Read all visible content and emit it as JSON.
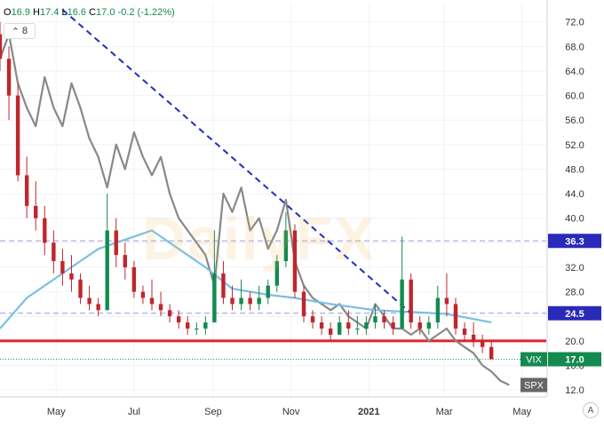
{
  "legend": {
    "open_label": "O",
    "open": "16.9",
    "high_label": "H",
    "high": "17.4",
    "low_label": "L",
    "low": "16.6",
    "close_label": "C",
    "close": "17.0",
    "change": "-0.2 (-1.22%)"
  },
  "collapse_count": "8",
  "watermark": "DailyFX",
  "colors": {
    "up": "#138a4f",
    "down": "#c0262d",
    "spx": "#888888",
    "ma": "#7bbfe3",
    "trendline": "#1f2fb8",
    "support": "#e0232c",
    "ref": "#9a9adf",
    "label_blue": "#2a2ab8"
  },
  "chart_data": {
    "type": "candlestick",
    "y_axis": {
      "ticks": [
        12.0,
        16.0,
        20.0,
        24.0,
        28.0,
        32.0,
        36.0,
        40.0,
        44.0,
        48.0,
        52.0,
        56.0,
        60.0,
        64.0,
        68.0,
        72.0
      ],
      "tick_labels": [
        "12.0",
        "16.0",
        "20.0",
        "24.0",
        "28.0",
        "32.0",
        "36.0",
        "40.0",
        "44.0",
        "48.0",
        "52.0",
        "56.0",
        "60.0",
        "64.0",
        "68.0",
        "72.0"
      ],
      "range": [
        11.0,
        75.0
      ],
      "position": "right"
    },
    "x_axis": {
      "labels": [
        "May",
        "Jul",
        "Sep",
        "Nov",
        "2021",
        "Mar",
        "May"
      ],
      "label_dates": [
        "2020-05-01",
        "2020-07-01",
        "2020-09-01",
        "2020-11-01",
        "2021-01-01",
        "2021-03-01",
        "2021-05-01"
      ],
      "range": [
        "2020-03-18",
        "2021-05-20"
      ]
    },
    "grid": "on",
    "series": [
      {
        "name": "VIX",
        "kind": "candles",
        "values": [
          [
            "2020-03-18",
            70,
            72,
            64,
            66
          ],
          [
            "2020-03-25",
            66,
            68,
            56,
            60
          ],
          [
            "2020-04-01",
            60,
            62,
            46,
            47
          ],
          [
            "2020-04-08",
            47,
            50,
            40,
            42
          ],
          [
            "2020-04-15",
            42,
            46,
            38,
            40
          ],
          [
            "2020-04-22",
            40,
            42,
            34,
            36
          ],
          [
            "2020-04-29",
            36,
            38,
            31,
            33
          ],
          [
            "2020-05-06",
            33,
            35,
            29,
            31
          ],
          [
            "2020-05-13",
            31,
            34,
            28,
            30
          ],
          [
            "2020-05-20",
            30,
            31,
            26,
            27
          ],
          [
            "2020-05-27",
            27,
            29,
            25,
            26
          ],
          [
            "2020-06-03",
            26,
            27,
            24,
            25
          ],
          [
            "2020-06-10",
            25,
            44,
            25,
            38
          ],
          [
            "2020-06-17",
            38,
            40,
            32,
            34
          ],
          [
            "2020-06-24",
            34,
            36,
            30,
            32
          ],
          [
            "2020-07-01",
            32,
            33,
            27,
            28
          ],
          [
            "2020-07-08",
            28,
            29,
            26,
            27
          ],
          [
            "2020-07-15",
            27,
            30,
            25,
            26
          ],
          [
            "2020-07-22",
            26,
            28,
            24,
            25
          ],
          [
            "2020-07-29",
            25,
            26,
            23,
            24
          ],
          [
            "2020-08-05",
            24,
            25,
            22,
            23
          ],
          [
            "2020-08-12",
            23,
            24,
            21,
            22
          ],
          [
            "2020-08-19",
            22,
            23,
            21,
            22
          ],
          [
            "2020-08-26",
            22,
            24,
            21,
            23
          ],
          [
            "2020-09-02",
            23,
            38,
            23,
            31
          ],
          [
            "2020-09-09",
            31,
            33,
            26,
            27
          ],
          [
            "2020-09-16",
            27,
            29,
            25,
            26
          ],
          [
            "2020-09-23",
            26,
            30,
            25,
            27
          ],
          [
            "2020-09-30",
            27,
            28,
            25,
            26
          ],
          [
            "2020-10-07",
            26,
            29,
            25,
            27
          ],
          [
            "2020-10-14",
            27,
            30,
            26,
            29
          ],
          [
            "2020-10-21",
            29,
            34,
            28,
            33
          ],
          [
            "2020-10-28",
            33,
            41,
            32,
            38
          ],
          [
            "2020-11-04",
            38,
            39,
            27,
            28
          ],
          [
            "2020-11-11",
            28,
            29,
            23,
            24
          ],
          [
            "2020-11-18",
            24,
            25,
            22,
            23
          ],
          [
            "2020-11-25",
            23,
            24,
            21,
            22
          ],
          [
            "2020-12-02",
            22,
            23,
            20,
            21
          ],
          [
            "2020-12-09",
            21,
            24,
            21,
            23
          ],
          [
            "2020-12-16",
            23,
            25,
            21,
            22
          ],
          [
            "2020-12-23",
            22,
            24,
            21,
            22
          ],
          [
            "2020-12-30",
            22,
            24,
            21,
            23
          ],
          [
            "2021-01-06",
            23,
            26,
            22,
            24
          ],
          [
            "2021-01-13",
            24,
            25,
            22,
            23
          ],
          [
            "2021-01-20",
            23,
            24,
            21,
            22
          ],
          [
            "2021-01-27",
            22,
            37,
            22,
            30
          ],
          [
            "2021-02-03",
            30,
            31,
            22,
            23
          ],
          [
            "2021-02-10",
            23,
            24,
            21,
            22
          ],
          [
            "2021-02-17",
            22,
            24,
            21,
            23
          ],
          [
            "2021-02-24",
            23,
            29,
            22,
            27
          ],
          [
            "2021-03-03",
            27,
            31,
            24,
            26
          ],
          [
            "2021-03-10",
            26,
            27,
            21,
            22
          ],
          [
            "2021-03-17",
            22,
            23,
            20,
            21
          ],
          [
            "2021-03-24",
            21,
            23,
            19,
            20
          ],
          [
            "2021-03-31",
            20,
            21,
            18,
            19
          ],
          [
            "2021-04-07",
            19,
            20,
            17,
            17
          ]
        ]
      },
      {
        "name": "SPX",
        "kind": "line",
        "label": "SPX",
        "values": [
          [
            "2020-03-18",
            66
          ],
          [
            "2020-03-25",
            70
          ],
          [
            "2020-04-01",
            62
          ],
          [
            "2020-04-08",
            58
          ],
          [
            "2020-04-15",
            55
          ],
          [
            "2020-04-22",
            63
          ],
          [
            "2020-04-29",
            58
          ],
          [
            "2020-05-06",
            55
          ],
          [
            "2020-05-13",
            62
          ],
          [
            "2020-05-20",
            58
          ],
          [
            "2020-05-27",
            53
          ],
          [
            "2020-06-03",
            50
          ],
          [
            "2020-06-10",
            45
          ],
          [
            "2020-06-17",
            52
          ],
          [
            "2020-06-24",
            48
          ],
          [
            "2020-07-01",
            54
          ],
          [
            "2020-07-08",
            50
          ],
          [
            "2020-07-15",
            47
          ],
          [
            "2020-07-22",
            50
          ],
          [
            "2020-07-29",
            44
          ],
          [
            "2020-08-05",
            40
          ],
          [
            "2020-08-12",
            38
          ],
          [
            "2020-08-19",
            36
          ],
          [
            "2020-08-26",
            34
          ],
          [
            "2020-09-02",
            29
          ],
          [
            "2020-09-09",
            44
          ],
          [
            "2020-09-16",
            41
          ],
          [
            "2020-09-23",
            45
          ],
          [
            "2020-09-30",
            38
          ],
          [
            "2020-10-07",
            40
          ],
          [
            "2020-10-14",
            35
          ],
          [
            "2020-10-21",
            38
          ],
          [
            "2020-10-28",
            43
          ],
          [
            "2020-11-04",
            33
          ],
          [
            "2020-11-11",
            29
          ],
          [
            "2020-11-18",
            27
          ],
          [
            "2020-11-25",
            26
          ],
          [
            "2020-12-02",
            25
          ],
          [
            "2020-12-09",
            26
          ],
          [
            "2020-12-16",
            24
          ],
          [
            "2020-12-23",
            23
          ],
          [
            "2020-12-30",
            22
          ],
          [
            "2021-01-06",
            26
          ],
          [
            "2021-01-13",
            24
          ],
          [
            "2021-01-20",
            22
          ],
          [
            "2021-01-27",
            22
          ],
          [
            "2021-02-03",
            21
          ],
          [
            "2021-02-10",
            22
          ],
          [
            "2021-02-17",
            20
          ],
          [
            "2021-02-24",
            21
          ],
          [
            "2021-03-03",
            22
          ],
          [
            "2021-03-10",
            20
          ],
          [
            "2021-03-17",
            19
          ],
          [
            "2021-03-24",
            18
          ],
          [
            "2021-03-31",
            16
          ],
          [
            "2021-04-07",
            15
          ],
          [
            "2021-04-14",
            13.5
          ],
          [
            "2021-04-21",
            12.8
          ]
        ]
      },
      {
        "name": "moving-average",
        "kind": "line",
        "values": [
          [
            "2020-03-18",
            22
          ],
          [
            "2020-04-08",
            27
          ],
          [
            "2020-05-06",
            31
          ],
          [
            "2020-06-03",
            35
          ],
          [
            "2020-07-01",
            37
          ],
          [
            "2020-07-15",
            38
          ],
          [
            "2020-08-05",
            35
          ],
          [
            "2020-08-26",
            32
          ],
          [
            "2020-09-16",
            28.5
          ],
          [
            "2020-10-14",
            27.5
          ],
          [
            "2020-11-04",
            27
          ],
          [
            "2020-12-02",
            26
          ],
          [
            "2021-01-06",
            25
          ],
          [
            "2021-02-03",
            24.7
          ],
          [
            "2021-03-03",
            24.4
          ],
          [
            "2021-04-07",
            23.0
          ]
        ]
      },
      {
        "name": "trendline",
        "kind": "dashed-line",
        "values": [
          [
            "2020-05-06",
            74
          ],
          [
            "2021-02-03",
            24.5
          ]
        ]
      }
    ],
    "levels": [
      {
        "value": 36.3,
        "style": "dashed",
        "label": "36.3"
      },
      {
        "value": 24.5,
        "style": "dashed",
        "label": "24.5"
      },
      {
        "value": 20.0,
        "style": "solid",
        "label": ""
      },
      {
        "value": 17.0,
        "style": "dotted",
        "label": "17.0"
      }
    ],
    "price_labels": [
      {
        "name": "VIX",
        "value": 17.0,
        "text": "17.0"
      },
      {
        "name": "SPX",
        "value": 12.8,
        "text": ""
      }
    ]
  }
}
